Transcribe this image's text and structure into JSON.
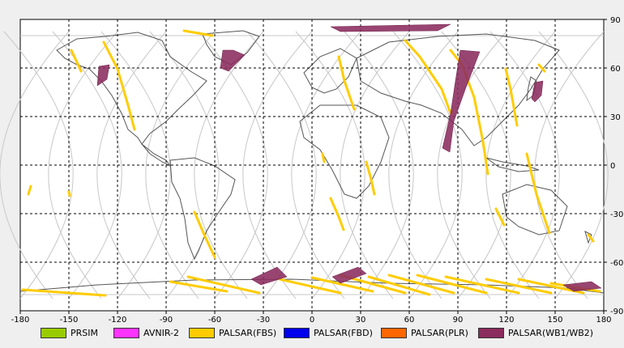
{
  "map": {
    "x_ticks": [
      "-180",
      "-150",
      "-120",
      "-90",
      "-60",
      "-30",
      "0",
      "30",
      "60",
      "90",
      "120",
      "150",
      "180"
    ],
    "y_ticks": [
      "90",
      "60",
      "30",
      "0",
      "-30",
      "-60",
      "-90"
    ],
    "x_range": [
      -180,
      180
    ],
    "y_range": [
      -90,
      90
    ],
    "grid": "dashed",
    "colors": {
      "land_outline": "#555555",
      "orbit": "#c8c8c8",
      "fbs": "#ffcc00",
      "wb": "#8b2b5e"
    }
  },
  "legend": [
    {
      "label": "PRSIM",
      "color": "#99cc00"
    },
    {
      "label": "AVNIR-2",
      "color": "#ff33ff"
    },
    {
      "label": "PALSAR(FBS)",
      "color": "#ffcc00"
    },
    {
      "label": "PALSAR(FBD)",
      "color": "#0000ee"
    },
    {
      "label": "PALSAR(PLR)",
      "color": "#ff6600"
    },
    {
      "label": "PALSAR(WB1/WB2)",
      "color": "#8b2b5e"
    }
  ]
}
